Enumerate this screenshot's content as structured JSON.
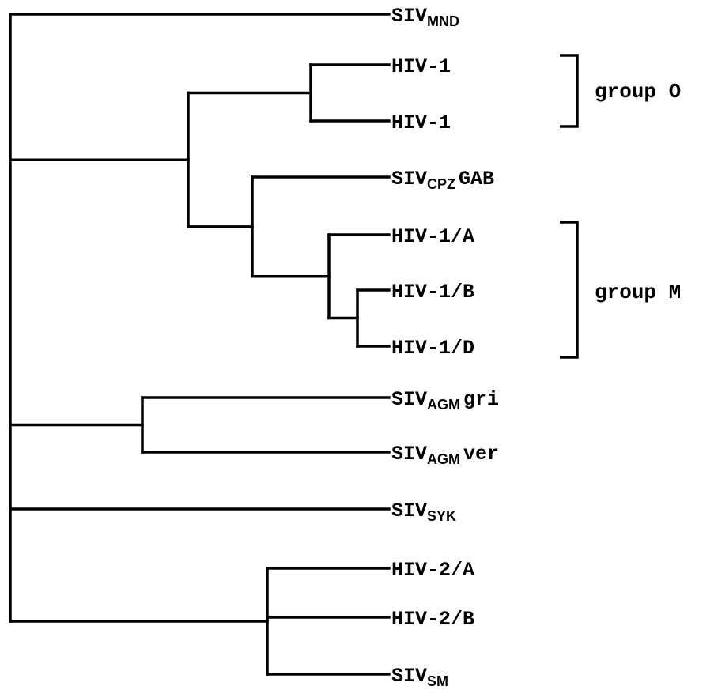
{
  "tree": {
    "taxa": [
      {
        "id": "t0",
        "base": "SIV",
        "sub": "MND",
        "suffix": ""
      },
      {
        "id": "t1",
        "base": "HIV-1",
        "sub": "",
        "suffix": ""
      },
      {
        "id": "t2",
        "base": "HIV-1",
        "sub": "",
        "suffix": ""
      },
      {
        "id": "t3",
        "base": "SIV",
        "sub": "CPZ",
        "suffix": "GAB"
      },
      {
        "id": "t4",
        "base": "HIV-1/A",
        "sub": "",
        "suffix": ""
      },
      {
        "id": "t5",
        "base": "HIV-1/B",
        "sub": "",
        "suffix": ""
      },
      {
        "id": "t6",
        "base": "HIV-1/D",
        "sub": "",
        "suffix": ""
      },
      {
        "id": "t7",
        "base": "SIV",
        "sub": "AGM",
        "suffix": "gri"
      },
      {
        "id": "t8",
        "base": "SIV",
        "sub": "AGM",
        "suffix": "ver"
      },
      {
        "id": "t9",
        "base": "SIV",
        "sub": "SYK",
        "suffix": ""
      },
      {
        "id": "t10",
        "base": "HIV-2/A",
        "sub": "",
        "suffix": ""
      },
      {
        "id": "t11",
        "base": "HIV-2/B",
        "sub": "",
        "suffix": ""
      },
      {
        "id": "t12",
        "base": "SIV",
        "sub": "SM",
        "suffix": ""
      }
    ],
    "groups": [
      {
        "id": "group-o",
        "label": "group O"
      },
      {
        "id": "group-m",
        "label": "group M"
      }
    ]
  }
}
